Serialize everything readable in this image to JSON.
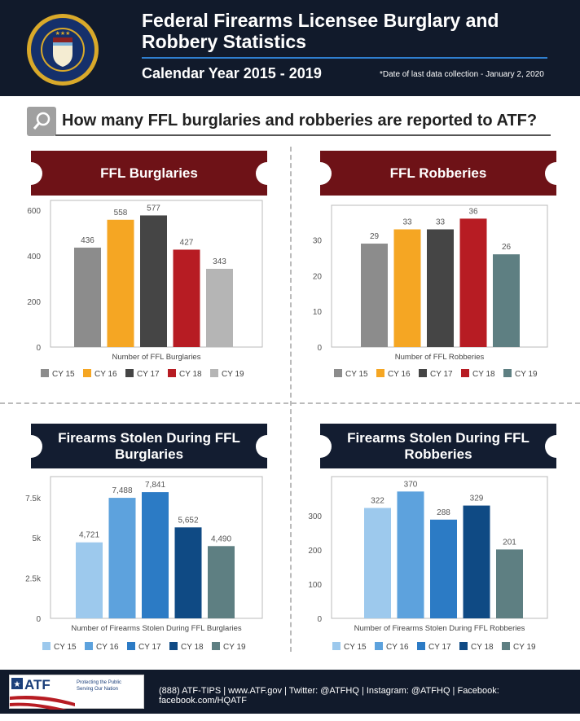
{
  "header": {
    "title": "Federal Firearms Licensee Burglary and Robbery Statistics",
    "subtitle": "Calendar Year 2015 - 2019",
    "note": "*Date of last data collection - January 2, 2020",
    "seal_text": "Bureau of Alcohol, Tobacco, Firearms and Explosives 1972"
  },
  "question": "How many FFL burglaries and robberies are reported to ATF?",
  "footer": {
    "logo_text": "ATF",
    "tagline1": "Protecting the Public",
    "tagline2": "Serving Our Nation",
    "contact": "(888) ATF-TIPS | www.ATF.gov | Twitter: @ATFHQ | Instagram: @ATFHQ | Facebook: facebook.com/HQATF"
  },
  "chart_data": [
    {
      "type": "bar",
      "title": "FFL Burglaries",
      "xlabel": "Number of FFL Burglaries",
      "categories": [
        "CY 15",
        "CY 16",
        "CY 17",
        "CY 18",
        "CY 19"
      ],
      "values": [
        436,
        558,
        577,
        427,
        343
      ],
      "value_labels": [
        "436",
        "558",
        "577",
        "427",
        "343"
      ],
      "yticks": [
        "0",
        "200",
        "400",
        "600"
      ],
      "ytick_values": [
        0,
        200,
        400,
        600
      ],
      "ylim": [
        0,
        600
      ],
      "colors": [
        "#8c8c8c",
        "#f5a623",
        "#454545",
        "#b71c23",
        "#b5b5b5"
      ],
      "legend": "bottom"
    },
    {
      "type": "bar",
      "title": "FFL Robberies",
      "xlabel": "Number of FFL Robberies",
      "categories": [
        "CY 15",
        "CY 16",
        "CY 17",
        "CY 18",
        "CY 19"
      ],
      "values": [
        29,
        33,
        33,
        36,
        26
      ],
      "value_labels": [
        "29",
        "33",
        "33",
        "36",
        "26"
      ],
      "yticks": [
        "0",
        "10",
        "20",
        "30"
      ],
      "ytick_values": [
        0,
        10,
        20,
        30
      ],
      "ylim": [
        0,
        37
      ],
      "colors": [
        "#8c8c8c",
        "#f5a623",
        "#454545",
        "#b71c23",
        "#5e7f82"
      ],
      "legend": "bottom"
    },
    {
      "type": "bar",
      "title": "Firearms Stolen During FFL Burglaries",
      "xlabel": "Number of Firearms Stolen During FFL Burglaries",
      "categories": [
        "CY 15",
        "CY 16",
        "CY 17",
        "CY 18",
        "CY 19"
      ],
      "values": [
        4721,
        7488,
        7841,
        5652,
        4490
      ],
      "value_labels": [
        "4,721",
        "7,488",
        "7,841",
        "5,652",
        "4,490"
      ],
      "yticks": [
        "0",
        "2.5k",
        "5k",
        "7.5k"
      ],
      "ytick_values": [
        0,
        2500,
        5000,
        7500
      ],
      "ylim": [
        0,
        8200
      ],
      "colors": [
        "#9dc9ed",
        "#5da2dd",
        "#2c7bc5",
        "#0f4a84",
        "#5e7f82"
      ],
      "legend": "bottom"
    },
    {
      "type": "bar",
      "title": "Firearms Stolen During FFL Robberies",
      "xlabel": "Number of Firearms Stolen During FFL Robberies",
      "categories": [
        "CY 15",
        "CY 16",
        "CY 17",
        "CY 18",
        "CY 19"
      ],
      "values": [
        322,
        370,
        288,
        329,
        201
      ],
      "value_labels": [
        "322",
        "370",
        "288",
        "329",
        "201"
      ],
      "yticks": [
        "0",
        "100",
        "200",
        "300"
      ],
      "ytick_values": [
        0,
        100,
        200,
        300
      ],
      "ylim": [
        0,
        385
      ],
      "colors": [
        "#9dc9ed",
        "#5da2dd",
        "#2c7bc5",
        "#0f4a84",
        "#5e7f82"
      ],
      "legend": "bottom"
    }
  ]
}
